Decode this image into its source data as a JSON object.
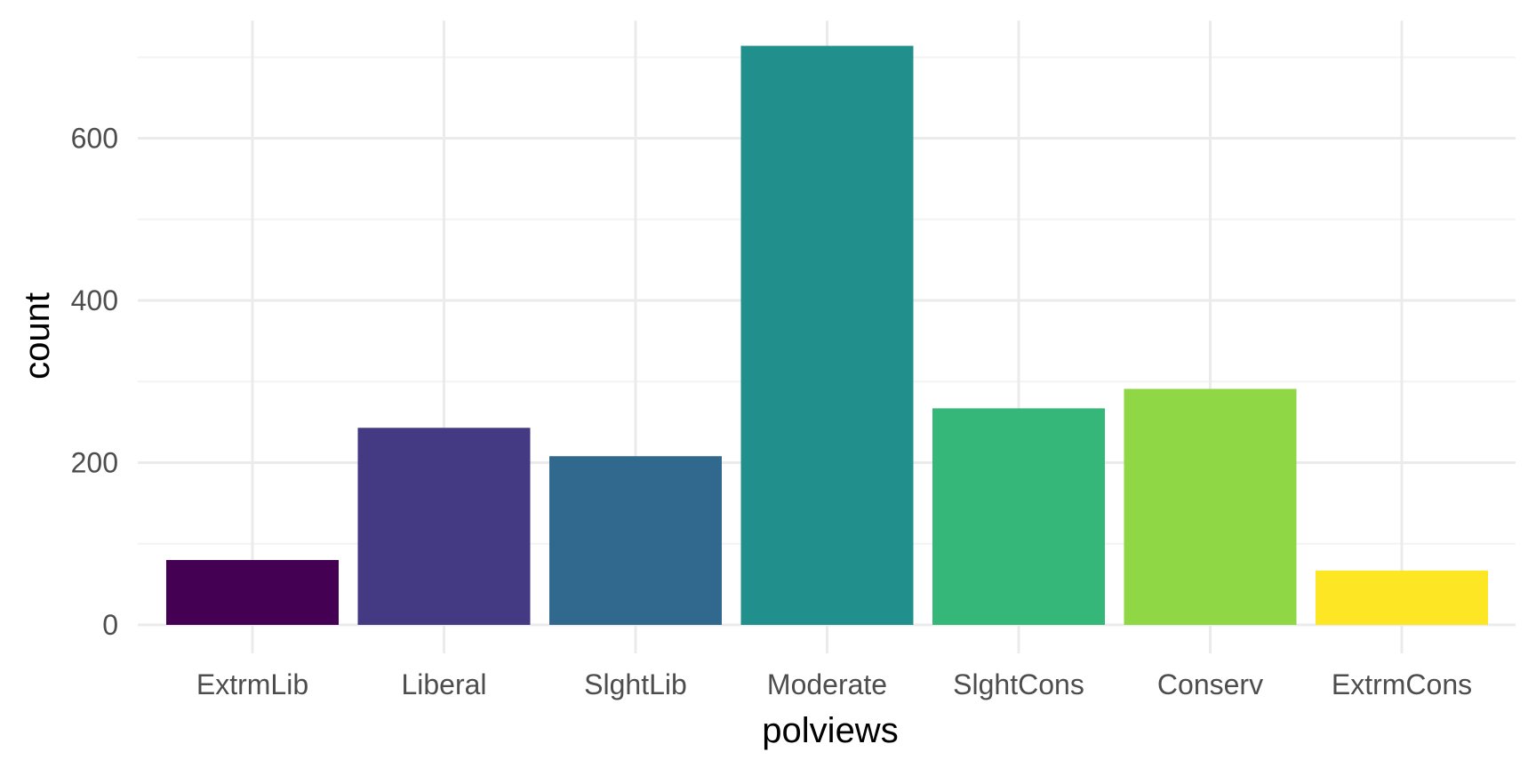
{
  "chart_data": {
    "type": "bar",
    "categories": [
      "ExtrmLib",
      "Liberal",
      "SlghtLib",
      "Moderate",
      "SlghtCons",
      "Conserv",
      "ExtrmCons"
    ],
    "values": [
      80,
      243,
      208,
      714,
      267,
      291,
      67
    ],
    "colors": [
      "#440154",
      "#443983",
      "#31688e",
      "#21908c",
      "#35b779",
      "#8fd744",
      "#fde725"
    ],
    "xlabel": "polviews",
    "ylabel": "count",
    "ylim": [
      0,
      745
    ],
    "yticks": [
      0,
      200,
      400,
      600
    ],
    "yminor": [
      100,
      300,
      500,
      700
    ],
    "grid": true,
    "legend": "none",
    "theme": "minimal"
  }
}
